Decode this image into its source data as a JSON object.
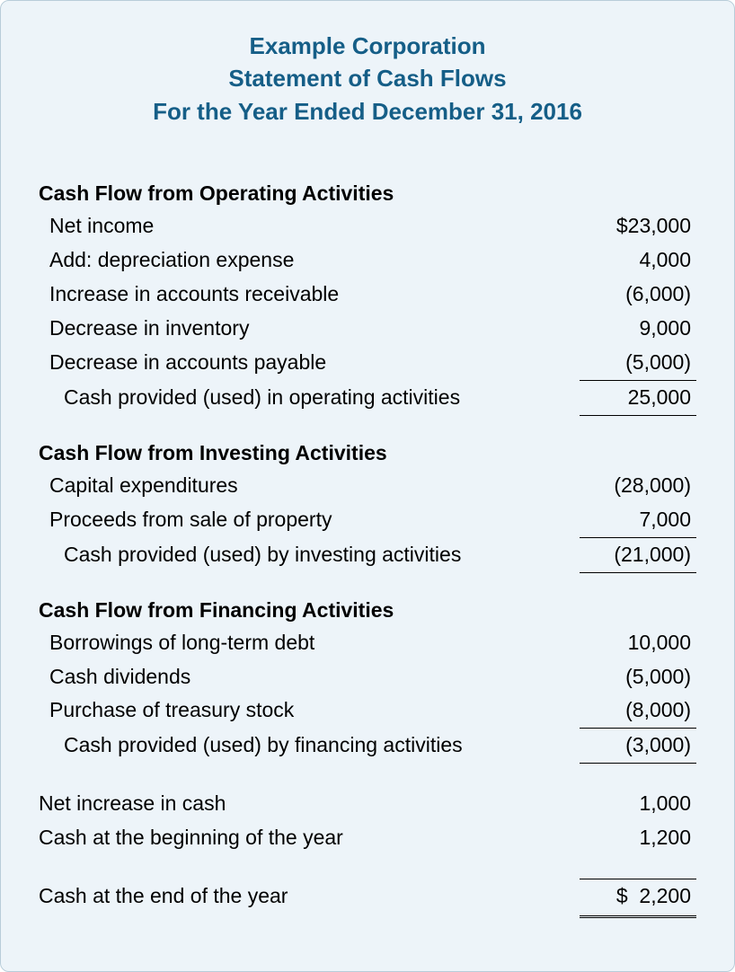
{
  "header": {
    "line1": "Example Corporation",
    "line2": "Statement of Cash Flows",
    "line3": "For the Year Ended December 31, 2016"
  },
  "operating": {
    "heading": "Cash Flow from Operating Activities",
    "rows": [
      {
        "label": "Net income",
        "value": "$23,000"
      },
      {
        "label": "Add: depreciation expense",
        "value": "4,000"
      },
      {
        "label": "Increase in accounts receivable",
        "value": "(6,000)"
      },
      {
        "label": "Decrease in inventory",
        "value": "9,000"
      },
      {
        "label": "Decrease in accounts payable",
        "value": "(5,000)"
      }
    ],
    "subtotal": {
      "label": "Cash provided (used) in operating activities",
      "value": "25,000"
    }
  },
  "investing": {
    "heading": "Cash Flow from Investing Activities",
    "rows": [
      {
        "label": "Capital expenditures",
        "value": "(28,000)"
      },
      {
        "label": "Proceeds from sale of property",
        "value": "7,000"
      }
    ],
    "subtotal": {
      "label": "Cash provided (used) by investing activities",
      "value": "(21,000)"
    }
  },
  "financing": {
    "heading": "Cash Flow from Financing Activities",
    "rows": [
      {
        "label": "Borrowings of long-term debt",
        "value": "10,000"
      },
      {
        "label": "Cash dividends",
        "value": "(5,000)"
      },
      {
        "label": "Purchase of treasury stock",
        "value": "(8,000)"
      }
    ],
    "subtotal": {
      "label": "Cash provided (used) by financing activities",
      "value": "(3,000)"
    }
  },
  "summary": {
    "net_increase": {
      "label": "Net increase in cash",
      "value": "1,000"
    },
    "beginning": {
      "label": "Cash at the beginning of the year",
      "value": "1,200"
    },
    "ending": {
      "label": "Cash at the end of the year",
      "value": "$  2,200"
    }
  },
  "colors": {
    "background": "#edf4f9",
    "border": "#b8cdd9",
    "heading_text": "#155e87",
    "body_text": "#000000"
  },
  "typography": {
    "header_fontsize": 26,
    "body_fontsize": 23,
    "font_family": "Arial"
  }
}
